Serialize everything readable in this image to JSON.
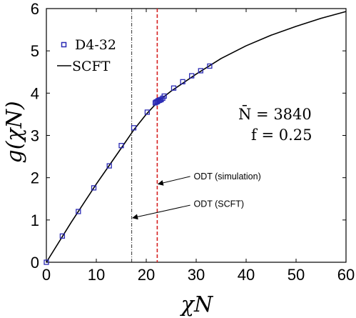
{
  "chart_data": {
    "type": "scatter",
    "xlabel": "χN",
    "ylabel": "g(χN)",
    "xlim": [
      0,
      60
    ],
    "ylim": [
      0,
      6
    ],
    "xticks": [
      "0",
      "10",
      "20",
      "30",
      "40",
      "50",
      "60"
    ],
    "yticks": [
      "0",
      "1",
      "2",
      "3",
      "4",
      "5",
      "6"
    ],
    "grid": false,
    "legend_position": "top-left",
    "series": [
      {
        "name": "D4-32",
        "kind": "markers",
        "marker": "square",
        "color": "#2a2ab4",
        "x": [
          0,
          3.2,
          6.4,
          9.5,
          12.6,
          15,
          17.5,
          20.2,
          21.8,
          22.0,
          22.2,
          22.4,
          22.6,
          22.8,
          23.0,
          23.3,
          23.6,
          25.5,
          27.3,
          29.1,
          30.9,
          32.7
        ],
        "y": [
          0,
          0.62,
          1.2,
          1.76,
          2.28,
          2.76,
          3.18,
          3.55,
          3.77,
          3.79,
          3.8,
          3.82,
          3.83,
          3.84,
          3.85,
          3.88,
          3.93,
          4.12,
          4.27,
          4.41,
          4.53,
          4.64
        ]
      },
      {
        "name": "SCFT",
        "kind": "line",
        "color": "#000000",
        "x": [
          0,
          5,
          10,
          15,
          17.5,
          20,
          22.5,
          25,
          30,
          35,
          40,
          45,
          50,
          55,
          60
        ],
        "y": [
          0,
          0.95,
          1.85,
          2.7,
          3.13,
          3.5,
          3.82,
          4.05,
          4.45,
          4.82,
          5.12,
          5.37,
          5.58,
          5.77,
          5.93
        ]
      }
    ],
    "vertical_lines": [
      {
        "x": 17.1,
        "style": "dashdot",
        "color": "#000000"
      },
      {
        "x": 22.2,
        "style": "dashed",
        "color": "#d62020"
      }
    ],
    "params": {
      "line1": "N̄ = 3840",
      "line2": "f = 0.25"
    },
    "annotations": [
      {
        "text": "ODT (simulation)",
        "text_x": 29.5,
        "text_y": 2.03,
        "arrow_from": [
          28.8,
          2.03
        ],
        "arrow_to": [
          22.4,
          1.85
        ]
      },
      {
        "text": "ODT (SCFT)",
        "text_x": 29.5,
        "text_y": 1.38,
        "arrow_from": [
          28.8,
          1.35
        ],
        "arrow_to": [
          17.3,
          1.05
        ]
      }
    ]
  }
}
